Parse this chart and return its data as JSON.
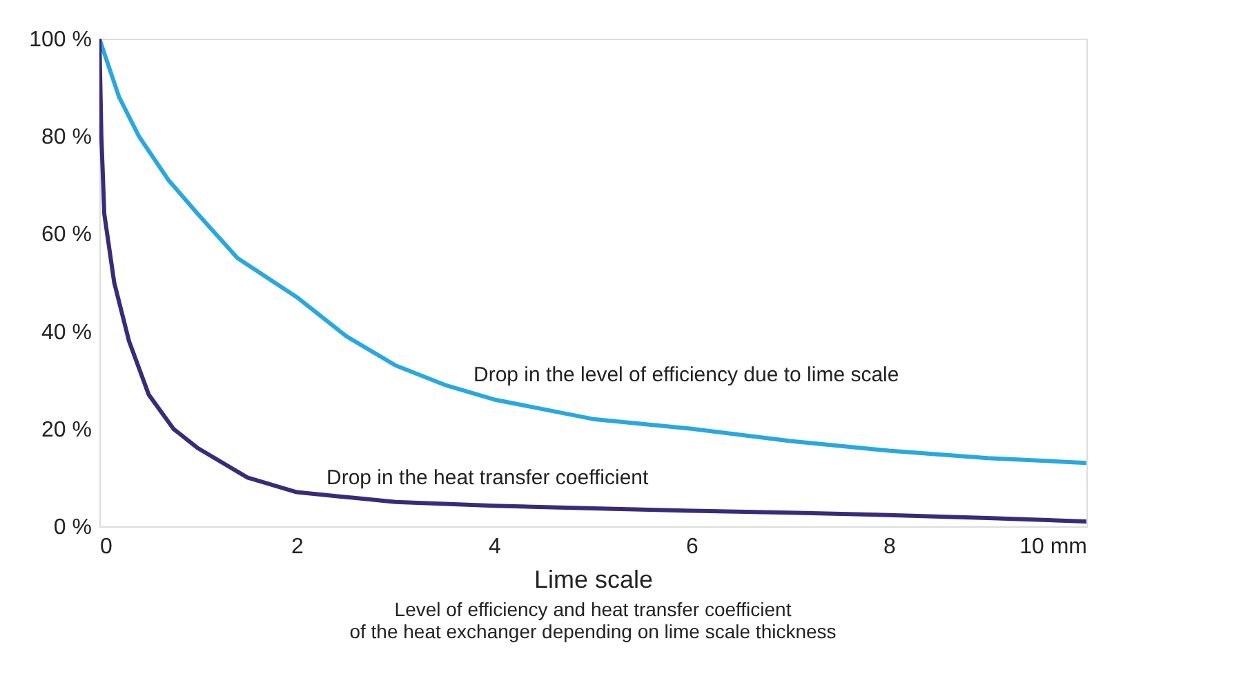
{
  "chart_data": {
    "type": "line",
    "xlabel": "Lime scale",
    "annotations": [
      "Level of efficiency and heat transfer coefficient\nof the heat exchanger depending on lime scale thickness"
    ],
    "xlim": [
      0,
      10
    ],
    "ylim": [
      0,
      100
    ],
    "xticks": [
      0,
      2,
      4,
      6,
      8,
      {
        "value": 10,
        "label": "10 mm"
      }
    ],
    "yticks": [
      {
        "value": 0,
        "label": "0 %"
      },
      {
        "value": 20,
        "label": "20 %"
      },
      {
        "value": 40,
        "label": "40 %"
      },
      {
        "value": 60,
        "label": "60 %"
      },
      {
        "value": 80,
        "label": "80 %"
      },
      {
        "value": 100,
        "label": "100 %"
      }
    ],
    "grid": false,
    "legend": false,
    "marker": "none",
    "line_style": "solid",
    "series": [
      {
        "name": "Drop in the level of efficiency due to lime scale",
        "color": "#29a8e0",
        "x": [
          0,
          0.2,
          0.4,
          0.7,
          1,
          1.4,
          2,
          2.5,
          3,
          3.5,
          4,
          5,
          6,
          7,
          8,
          9,
          10
        ],
        "values": [
          100,
          88,
          80,
          71,
          64,
          55,
          47,
          39,
          33,
          29,
          26,
          22,
          20,
          17.5,
          15.5,
          14,
          13
        ]
      },
      {
        "name": "Drop in the heat transfer coefficient",
        "color": "#3a2a7a",
        "x": [
          0,
          0.02,
          0.05,
          0.15,
          0.3,
          0.5,
          0.75,
          1,
          1.5,
          2,
          2.5,
          3,
          4,
          5,
          6,
          7,
          8,
          9,
          10
        ],
        "values": [
          100,
          80,
          64,
          50,
          38,
          27,
          20,
          16,
          10,
          7,
          6,
          5,
          4.2,
          3.7,
          3.2,
          2.8,
          2.3,
          1.7,
          1
        ]
      }
    ]
  }
}
